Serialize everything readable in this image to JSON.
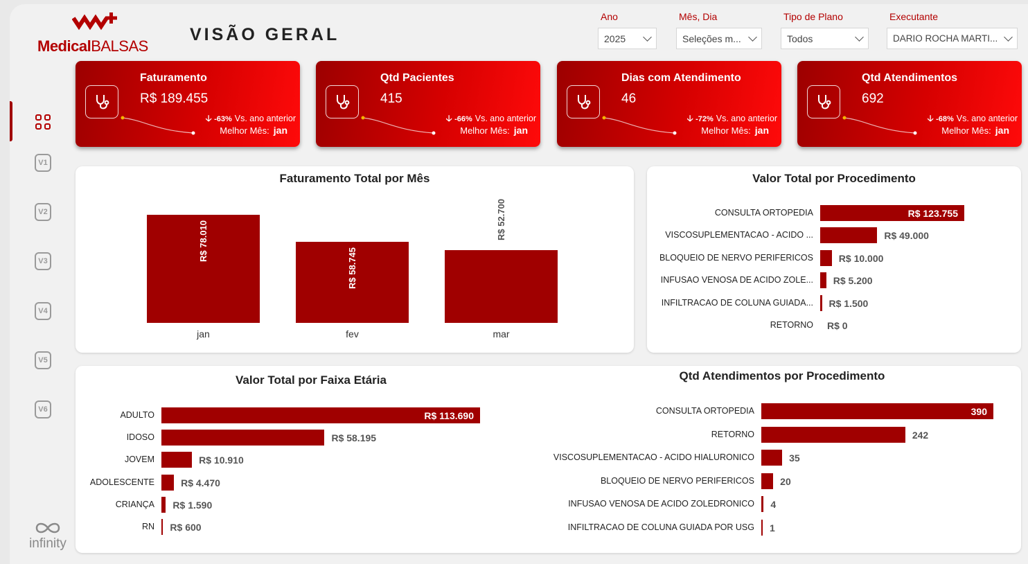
{
  "header": {
    "brand_bold": "Medical",
    "brand_light": "BALSAS",
    "title": "VISÃO GERAL",
    "filters": [
      {
        "label": "Ano",
        "value": "2025"
      },
      {
        "label": "Mês, Dia",
        "value": "Seleções m..."
      },
      {
        "label": "Tipo de Plano",
        "value": "Todos"
      },
      {
        "label": "Executante",
        "value": "DARIO ROCHA MARTI..."
      }
    ]
  },
  "sidebar": {
    "items": [
      "V1",
      "V2",
      "V3",
      "V4",
      "V5",
      "V6"
    ]
  },
  "kpis": [
    {
      "title": "Faturamento",
      "value": "R$ 189.455",
      "delta": "-63%",
      "delta_label": "Vs. ano anterior",
      "best_label": "Melhor Mês:",
      "best_value": "jan"
    },
    {
      "title": "Qtd Pacientes",
      "value": "415",
      "delta": "-66%",
      "delta_label": "Vs. ano anterior",
      "best_label": "Melhor Mês:",
      "best_value": "jan"
    },
    {
      "title": "Dias com Atendimento",
      "value": "46",
      "delta": "-72%",
      "delta_label": "Vs. ano anterior",
      "best_label": "Melhor Mês:",
      "best_value": "jan"
    },
    {
      "title": "Qtd Atendimentos",
      "value": "692",
      "delta": "-68%",
      "delta_label": "Vs. ano anterior",
      "best_label": "Melhor Mês:",
      "best_value": "jan"
    }
  ],
  "colors": {
    "accent": "#a00000",
    "brand": "#b30000"
  },
  "chart_data": [
    {
      "type": "bar",
      "title": "Faturamento Total por Mês",
      "categories": [
        "jan",
        "fev",
        "mar"
      ],
      "values": [
        78010,
        58745,
        52700
      ],
      "labels": [
        "R$ 78.010",
        "R$ 58.745",
        "R$ 52.700"
      ],
      "ylim": [
        0,
        78010
      ]
    },
    {
      "type": "bar",
      "orientation": "horizontal",
      "title": "Valor Total por Procedimento",
      "categories": [
        "CONSULTA ORTOPEDIA",
        "VISCOSUPLEMENTACAO - ACIDO ...",
        "BLOQUEIO DE NERVO PERIFERICOS",
        "INFUSAO VENOSA DE ACIDO ZOLE...",
        "INFILTRACAO DE COLUNA GUIADA...",
        "RETORNO"
      ],
      "values": [
        123755,
        49000,
        10000,
        5200,
        1500,
        0
      ],
      "labels": [
        "R$ 123.755",
        "R$ 49.000",
        "R$ 10.000",
        "R$ 5.200",
        "R$ 1.500",
        "R$ 0"
      ]
    },
    {
      "type": "bar",
      "orientation": "horizontal",
      "title": "Valor Total por Faixa Etária",
      "categories": [
        "ADULTO",
        "IDOSO",
        "JOVEM",
        "ADOLESCENTE",
        "CRIANÇA",
        "RN"
      ],
      "values": [
        113690,
        58195,
        10910,
        4470,
        1590,
        600
      ],
      "labels": [
        "R$ 113.690",
        "R$ 58.195",
        "R$ 10.910",
        "R$ 4.470",
        "R$ 1.590",
        "R$ 600"
      ]
    },
    {
      "type": "bar",
      "orientation": "horizontal",
      "title": "Qtd Atendimentos por Procedimento",
      "categories": [
        "CONSULTA ORTOPEDIA",
        "RETORNO",
        "VISCOSUPLEMENTACAO - ACIDO HIALURONICO",
        "BLOQUEIO DE NERVO PERIFERICOS",
        "INFUSAO VENOSA DE ACIDO ZOLEDRONICO",
        "INFILTRACAO DE COLUNA GUIADA POR USG"
      ],
      "values": [
        390,
        242,
        35,
        20,
        4,
        1
      ],
      "labels": [
        "390",
        "242",
        "35",
        "20",
        "4",
        "1"
      ]
    }
  ],
  "footer": {
    "brand": "infinity"
  }
}
